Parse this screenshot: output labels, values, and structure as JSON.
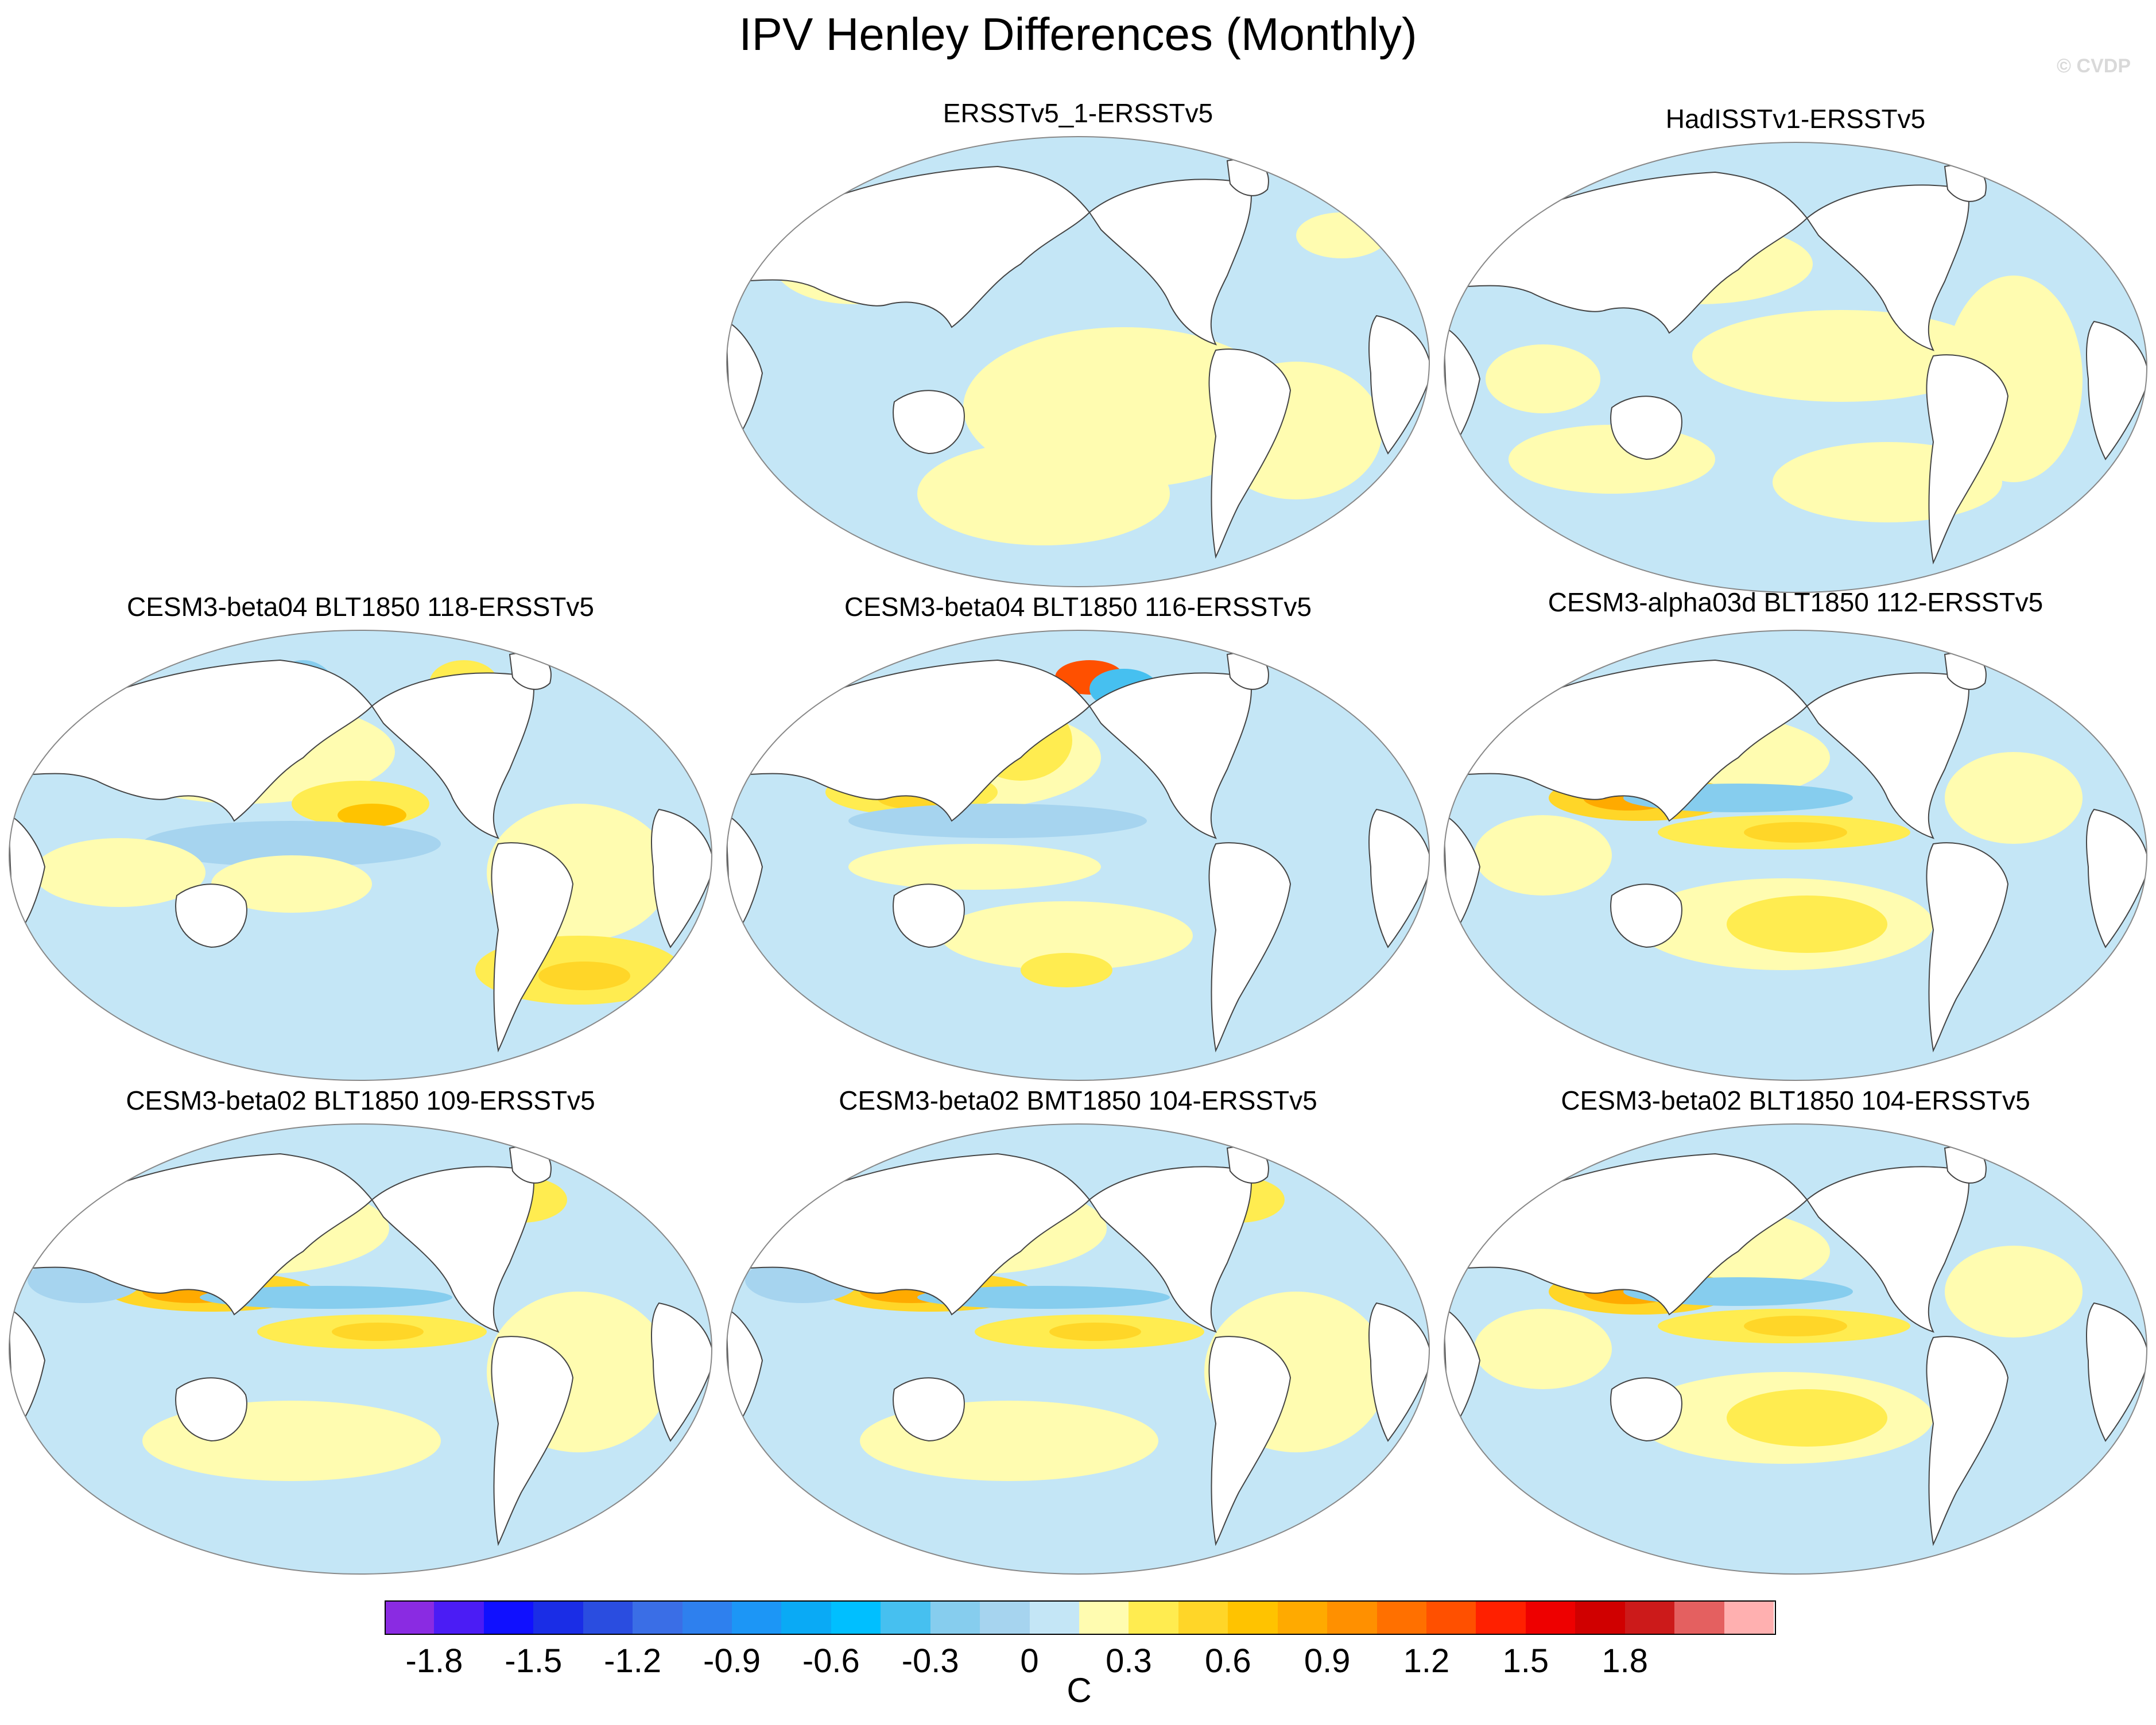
{
  "title": "IPV Henley Differences (Monthly)",
  "credit": "© CVDP",
  "panels": [
    {
      "title": "ERSSTv5_1-ERSSTv5",
      "pattern": "weak"
    },
    {
      "title": "HadISSTv1-ERSSTv5",
      "pattern": "patchy"
    },
    {
      "title": "CESM3-beta04 BLT1850 118-ERSSTv5",
      "pattern": "model-a"
    },
    {
      "title": "CESM3-beta04 BLT1850 116-ERSSTv5",
      "pattern": "model-b"
    },
    {
      "title": "CESM3-alpha03d BLT1850 112-ERSSTv5",
      "pattern": "model-c"
    },
    {
      "title": "CESM3-beta02 BLT1850 109-ERSSTv5",
      "pattern": "model-d"
    },
    {
      "title": "CESM3-beta02 BMT1850 104-ERSSTv5",
      "pattern": "model-d"
    },
    {
      "title": "CESM3-beta02 BLT1850 104-ERSSTv5",
      "pattern": "model-c"
    }
  ],
  "colorbar": {
    "unit": "C",
    "colors": [
      "#8a2be2",
      "#4b1cf5",
      "#1010ff",
      "#1a2de6",
      "#2a4de0",
      "#3a6ee6",
      "#2e80ee",
      "#1c96f6",
      "#0aaaf5",
      "#00bfff",
      "#46c0f0",
      "#86cdee",
      "#a6d4ef",
      "#c4e6f6",
      "#fffcb0",
      "#ffec50",
      "#ffd628",
      "#ffc300",
      "#ffaa00",
      "#ff9000",
      "#ff7000",
      "#ff5000",
      "#ff2000",
      "#ee0000",
      "#d00000",
      "#cc1a1a",
      "#e46060",
      "#ffb0b0"
    ],
    "tick_labels": [
      "-1.8",
      "-1.5",
      "-1.2",
      "-0.9",
      "-0.6",
      "-0.3",
      "0",
      "0.3",
      "0.6",
      "0.9",
      "1.2",
      "1.5",
      "1.8"
    ]
  }
}
